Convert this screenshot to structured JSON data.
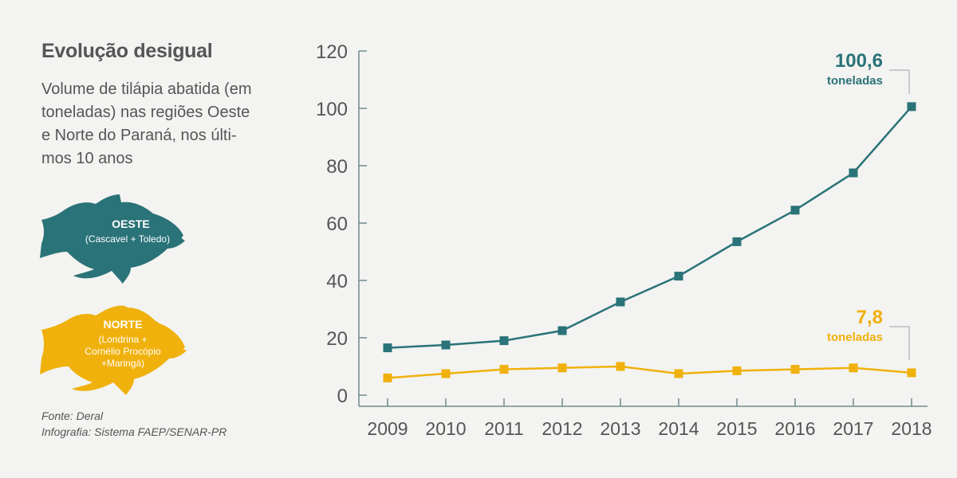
{
  "title": "Evolução desigual",
  "subtitle_lines": [
    "Volume de tilápia abatida (em",
    "toneladas) nas regiões Oeste",
    "e Norte do Paraná, nos últi-",
    "mos 10 anos"
  ],
  "legend": {
    "oeste": {
      "name": "OESTE",
      "lines": [
        "(Cascavel + Toledo)"
      ]
    },
    "norte": {
      "name": "NORTE",
      "lines": [
        "(Londrina +",
        "Cornélio Procópio",
        "+Maringá)"
      ]
    }
  },
  "source": {
    "line1": "Fonte: Deral",
    "line2": "Infografia: Sistema FAEP/SENAR-PR"
  },
  "colors": {
    "oeste": "#2a7378",
    "norte": "#f0b10c",
    "axis": "#6f8a8c",
    "text": "#555555",
    "background": "#f3f3f1"
  },
  "chart_data": {
    "type": "line",
    "x": [
      "2009",
      "2010",
      "2011",
      "2012",
      "2013",
      "2014",
      "2015",
      "2016",
      "2017",
      "2018"
    ],
    "ylim": [
      0,
      120
    ],
    "yticks": [
      0,
      20,
      40,
      60,
      80,
      100,
      120
    ],
    "grid": false,
    "series": [
      {
        "name": "OESTE",
        "color": "#2a7378",
        "values": [
          16.5,
          17.5,
          19,
          22.5,
          32.5,
          41.5,
          53.5,
          64.5,
          77.5,
          100.6
        ],
        "end_label": {
          "value": "100,6",
          "unit": "toneladas"
        }
      },
      {
        "name": "NORTE",
        "color": "#f0b10c",
        "values": [
          6,
          7.5,
          9,
          9.5,
          10,
          7.5,
          8.5,
          9,
          9.5,
          7.8
        ],
        "end_label": {
          "value": "7,8",
          "unit": "toneladas"
        }
      }
    ]
  }
}
